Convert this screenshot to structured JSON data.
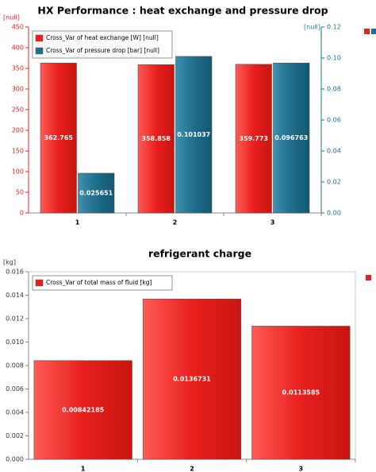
{
  "chart_data": [
    {
      "type": "bar",
      "title": "HX Performance : heat exchange and pressure drop",
      "y_label": "[null]",
      "y2_label": "[null]",
      "categories": [
        "1",
        "2",
        "3"
      ],
      "series": [
        {
          "name": "Cross_Var of heat exchange [W] [null]",
          "color": "#e8201e",
          "values": [
            362.765,
            358.858,
            359.773
          ]
        },
        {
          "name": "Cross_Var of pressure drop [bar] [null]",
          "color": "#1f6e8c",
          "axis": "y2",
          "values": [
            0.025651,
            0.101037,
            0.096763
          ]
        }
      ],
      "ylim": [
        0,
        450
      ],
      "yticks": [
        0,
        50,
        100,
        150,
        200,
        250,
        300,
        350,
        400,
        450
      ],
      "y2lim": [
        0,
        0.12
      ],
      "y2ticks": [
        {
          "value": 0,
          "label": "0.00"
        },
        0.02,
        0.04,
        0.06,
        0.08,
        {
          "value": 0.1,
          "label": "0.10"
        },
        0.12
      ],
      "legend": "upper left"
    },
    {
      "type": "bar",
      "title": "refrigerant charge",
      "y_label": "[kg]",
      "categories": [
        "1",
        "2",
        "3"
      ],
      "series": [
        {
          "name": "Cross_Var of total mass of fluid [kg]",
          "color": "#e8201e",
          "values": [
            0.00842185,
            0.0136731,
            0.0113585
          ]
        }
      ],
      "ylim": [
        0,
        0.016
      ],
      "yticks": [
        {
          "value": 0,
          "label": "0.000"
        },
        0.002,
        0.004,
        0.006,
        0.008,
        {
          "value": 0.01,
          "label": "0.010"
        },
        0.012,
        0.014,
        0.016
      ],
      "legend": "upper left"
    }
  ]
}
